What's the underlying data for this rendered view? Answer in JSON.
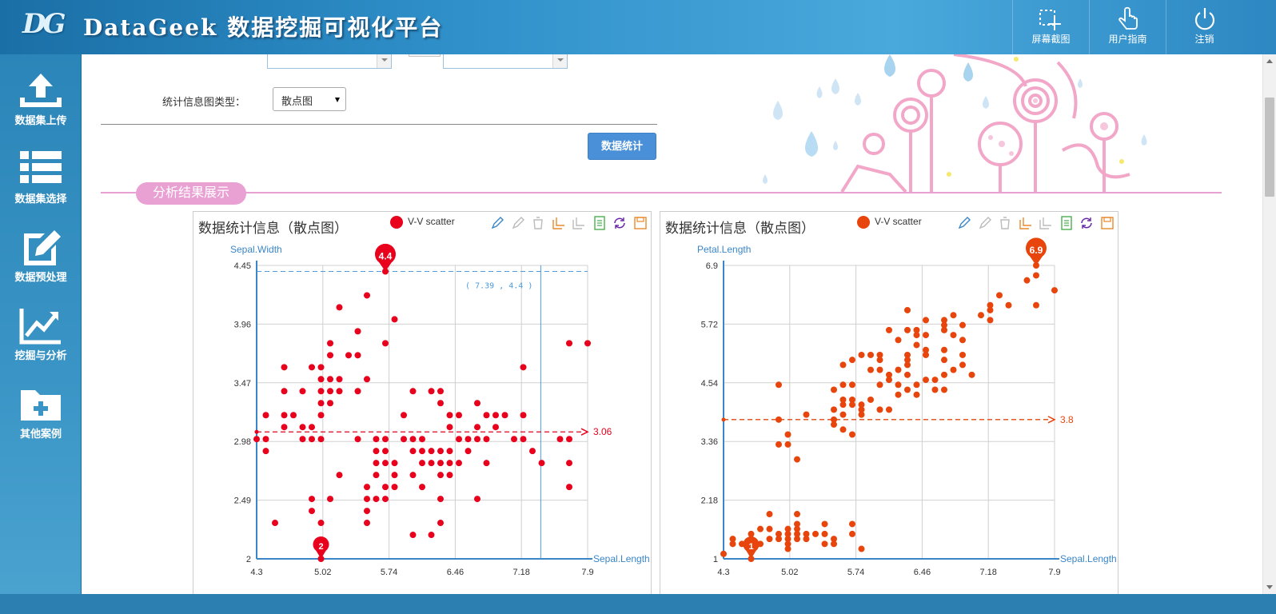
{
  "header": {
    "logo": "DG",
    "title": "DataGeek 数据挖掘可视化平台",
    "buttons": [
      {
        "label": "屏幕截图",
        "icon": "screenshot-icon"
      },
      {
        "label": "用户指南",
        "icon": "hand-pointer-icon"
      },
      {
        "label": "注销",
        "icon": "power-icon"
      }
    ]
  },
  "sidebar": {
    "items": [
      {
        "label": "数据集上传",
        "icon": "upload-icon"
      },
      {
        "label": "数据集选择",
        "icon": "list-icon"
      },
      {
        "label": "数据预处理",
        "icon": "edit-icon"
      },
      {
        "label": "挖掘与分析",
        "icon": "line-chart-icon"
      },
      {
        "label": "其他案例",
        "icon": "folder-plus-icon"
      }
    ]
  },
  "form": {
    "chart_type_label": "统计信息图类型：",
    "chart_type_value": "散点图",
    "submit_label": "数据统计"
  },
  "section": {
    "title": "分析结果展示"
  },
  "colors": {
    "series_left": "#e8001c",
    "series_right": "#e8450d",
    "axis": "#3a86c8",
    "accent_pink": "#e9a0d3",
    "button_blue": "#4a90d9"
  },
  "charts": [
    {
      "title": "数据统计信息（散点图）",
      "legend": "V-V scatter",
      "toolbox": [
        "mark-icon",
        "mark-undo-icon",
        "mark-clear-icon",
        "zoom-icon",
        "zoom-reset-icon",
        "data-view-icon",
        "restore-icon",
        "save-image-icon"
      ]
    },
    {
      "title": "数据统计信息（散点图）",
      "legend": "V-V scatter",
      "toolbox": [
        "mark-icon",
        "mark-undo-icon",
        "mark-clear-icon",
        "zoom-icon",
        "zoom-reset-icon",
        "data-view-icon",
        "restore-icon",
        "save-image-icon"
      ]
    }
  ],
  "chart_data": [
    {
      "type": "scatter",
      "title": "数据统计信息（散点图）",
      "legend": "V-V scatter",
      "xlabel": "Sepal.Length",
      "ylabel": "Sepal.Width",
      "xlim": [
        4.3,
        7.9
      ],
      "ylim": [
        2,
        4.45
      ],
      "xticks": [
        "4.3",
        "5.02",
        "5.74",
        "6.46",
        "7.18",
        "7.9"
      ],
      "yticks": [
        "2",
        "2.49",
        "2.98",
        "3.47",
        "3.96",
        "4.45"
      ],
      "max_marker": {
        "label": "4.4",
        "x": 5.7,
        "y": 4.4
      },
      "min_marker": {
        "label": "2",
        "x": 5.0,
        "y": 2.0
      },
      "mean_line": {
        "label": "3.06",
        "value": 3.06
      },
      "crosshair": {
        "label": "( 7.39 , 4.4 )",
        "x": 7.39,
        "y": 4.4
      },
      "points": [
        [
          4.3,
          3.0
        ],
        [
          4.4,
          2.9
        ],
        [
          4.4,
          3.0
        ],
        [
          4.4,
          3.2
        ],
        [
          4.5,
          2.3
        ],
        [
          4.6,
          3.1
        ],
        [
          4.6,
          3.2
        ],
        [
          4.6,
          3.4
        ],
        [
          4.6,
          3.6
        ],
        [
          4.7,
          3.2
        ],
        [
          4.8,
          3.0
        ],
        [
          4.8,
          3.1
        ],
        [
          4.8,
          3.4
        ],
        [
          4.9,
          2.4
        ],
        [
          4.9,
          2.5
        ],
        [
          4.9,
          3.0
        ],
        [
          4.9,
          3.1
        ],
        [
          4.9,
          3.6
        ],
        [
          5.0,
          2.0
        ],
        [
          5.0,
          2.3
        ],
        [
          5.0,
          3.0
        ],
        [
          5.0,
          3.2
        ],
        [
          5.0,
          3.3
        ],
        [
          5.0,
          3.4
        ],
        [
          5.0,
          3.5
        ],
        [
          5.0,
          3.6
        ],
        [
          5.1,
          2.5
        ],
        [
          5.1,
          3.3
        ],
        [
          5.1,
          3.4
        ],
        [
          5.1,
          3.5
        ],
        [
          5.1,
          3.7
        ],
        [
          5.1,
          3.8
        ],
        [
          5.2,
          2.7
        ],
        [
          5.2,
          3.4
        ],
        [
          5.2,
          3.5
        ],
        [
          5.2,
          4.1
        ],
        [
          5.3,
          3.7
        ],
        [
          5.4,
          3.0
        ],
        [
          5.4,
          3.4
        ],
        [
          5.4,
          3.7
        ],
        [
          5.4,
          3.9
        ],
        [
          5.5,
          2.3
        ],
        [
          5.5,
          2.4
        ],
        [
          5.5,
          2.5
        ],
        [
          5.5,
          2.6
        ],
        [
          5.5,
          3.5
        ],
        [
          5.5,
          4.2
        ],
        [
          5.6,
          2.5
        ],
        [
          5.6,
          2.7
        ],
        [
          5.6,
          2.8
        ],
        [
          5.6,
          2.9
        ],
        [
          5.6,
          3.0
        ],
        [
          5.7,
          2.5
        ],
        [
          5.7,
          2.6
        ],
        [
          5.7,
          2.8
        ],
        [
          5.7,
          2.9
        ],
        [
          5.7,
          3.0
        ],
        [
          5.7,
          3.8
        ],
        [
          5.7,
          4.4
        ],
        [
          5.8,
          2.6
        ],
        [
          5.8,
          2.7
        ],
        [
          5.8,
          2.8
        ],
        [
          5.8,
          4.0
        ],
        [
          5.9,
          3.0
        ],
        [
          5.9,
          3.2
        ],
        [
          6.0,
          2.2
        ],
        [
          6.0,
          2.7
        ],
        [
          6.0,
          2.9
        ],
        [
          6.0,
          3.0
        ],
        [
          6.0,
          3.4
        ],
        [
          6.1,
          2.6
        ],
        [
          6.1,
          2.8
        ],
        [
          6.1,
          2.9
        ],
        [
          6.1,
          3.0
        ],
        [
          6.2,
          2.2
        ],
        [
          6.2,
          2.8
        ],
        [
          6.2,
          2.9
        ],
        [
          6.2,
          3.4
        ],
        [
          6.3,
          2.3
        ],
        [
          6.3,
          2.5
        ],
        [
          6.3,
          2.7
        ],
        [
          6.3,
          2.8
        ],
        [
          6.3,
          2.9
        ],
        [
          6.3,
          3.3
        ],
        [
          6.3,
          3.4
        ],
        [
          6.4,
          2.7
        ],
        [
          6.4,
          2.8
        ],
        [
          6.4,
          2.9
        ],
        [
          6.4,
          3.1
        ],
        [
          6.4,
          3.2
        ],
        [
          6.5,
          2.8
        ],
        [
          6.5,
          3.0
        ],
        [
          6.5,
          3.2
        ],
        [
          6.6,
          2.9
        ],
        [
          6.6,
          3.0
        ],
        [
          6.7,
          2.5
        ],
        [
          6.7,
          3.0
        ],
        [
          6.7,
          3.1
        ],
        [
          6.7,
          3.3
        ],
        [
          6.8,
          2.8
        ],
        [
          6.8,
          3.0
        ],
        [
          6.8,
          3.2
        ],
        [
          6.9,
          3.1
        ],
        [
          6.9,
          3.2
        ],
        [
          7.0,
          3.2
        ],
        [
          7.1,
          3.0
        ],
        [
          7.2,
          3.0
        ],
        [
          7.2,
          3.2
        ],
        [
          7.2,
          3.6
        ],
        [
          7.3,
          2.9
        ],
        [
          7.4,
          2.8
        ],
        [
          7.6,
          3.0
        ],
        [
          7.7,
          2.6
        ],
        [
          7.7,
          2.8
        ],
        [
          7.7,
          3.0
        ],
        [
          7.7,
          3.8
        ],
        [
          7.9,
          3.8
        ]
      ]
    },
    {
      "type": "scatter",
      "title": "数据统计信息（散点图）",
      "legend": "V-V scatter",
      "xlabel": "Sepal.Length",
      "ylabel": "Petal.Length",
      "xlim": [
        4.3,
        7.9
      ],
      "ylim": [
        1,
        6.9
      ],
      "xticks": [
        "4.3",
        "5.02",
        "5.74",
        "6.46",
        "7.18",
        "7.9"
      ],
      "yticks": [
        "1",
        "2.18",
        "3.36",
        "4.54",
        "5.72",
        "6.9"
      ],
      "max_marker": {
        "label": "6.9",
        "x": 7.7,
        "y": 6.9
      },
      "min_marker": {
        "label": "1",
        "x": 4.6,
        "y": 1.0
      },
      "mean_line": {
        "label": "3.8",
        "value": 3.8
      },
      "points": [
        [
          4.3,
          1.1
        ],
        [
          4.4,
          1.3
        ],
        [
          4.4,
          1.4
        ],
        [
          4.5,
          1.3
        ],
        [
          4.6,
          1.0
        ],
        [
          4.6,
          1.4
        ],
        [
          4.6,
          1.5
        ],
        [
          4.7,
          1.3
        ],
        [
          4.7,
          1.6
        ],
        [
          4.8,
          1.4
        ],
        [
          4.8,
          1.6
        ],
        [
          4.8,
          1.9
        ],
        [
          4.9,
          1.4
        ],
        [
          4.9,
          1.5
        ],
        [
          4.9,
          3.3
        ],
        [
          4.9,
          3.8
        ],
        [
          4.9,
          4.5
        ],
        [
          5.0,
          1.2
        ],
        [
          5.0,
          1.3
        ],
        [
          5.0,
          1.4
        ],
        [
          5.0,
          1.5
        ],
        [
          5.0,
          1.6
        ],
        [
          5.0,
          3.3
        ],
        [
          5.0,
          3.5
        ],
        [
          5.1,
          1.4
        ],
        [
          5.1,
          1.5
        ],
        [
          5.1,
          1.6
        ],
        [
          5.1,
          1.7
        ],
        [
          5.1,
          1.9
        ],
        [
          5.1,
          3.0
        ],
        [
          5.2,
          1.4
        ],
        [
          5.2,
          1.5
        ],
        [
          5.2,
          3.9
        ],
        [
          5.3,
          1.5
        ],
        [
          5.4,
          1.3
        ],
        [
          5.4,
          1.5
        ],
        [
          5.4,
          1.7
        ],
        [
          5.5,
          1.3
        ],
        [
          5.5,
          1.4
        ],
        [
          5.5,
          3.7
        ],
        [
          5.5,
          3.8
        ],
        [
          5.5,
          4.0
        ],
        [
          5.5,
          4.4
        ],
        [
          5.6,
          3.6
        ],
        [
          5.6,
          3.9
        ],
        [
          5.6,
          4.1
        ],
        [
          5.6,
          4.2
        ],
        [
          5.6,
          4.5
        ],
        [
          5.6,
          4.9
        ],
        [
          5.7,
          1.5
        ],
        [
          5.7,
          1.7
        ],
        [
          5.7,
          3.5
        ],
        [
          5.7,
          4.1
        ],
        [
          5.7,
          4.2
        ],
        [
          5.7,
          4.5
        ],
        [
          5.7,
          5.0
        ],
        [
          5.8,
          1.2
        ],
        [
          5.8,
          3.9
        ],
        [
          5.8,
          4.0
        ],
        [
          5.8,
          4.1
        ],
        [
          5.8,
          5.1
        ],
        [
          5.9,
          4.2
        ],
        [
          5.9,
          4.8
        ],
        [
          5.9,
          5.1
        ],
        [
          6.0,
          4.0
        ],
        [
          6.0,
          4.5
        ],
        [
          6.0,
          4.8
        ],
        [
          6.0,
          5.0
        ],
        [
          6.0,
          5.1
        ],
        [
          6.1,
          4.0
        ],
        [
          6.1,
          4.6
        ],
        [
          6.1,
          4.7
        ],
        [
          6.1,
          5.6
        ],
        [
          6.2,
          4.3
        ],
        [
          6.2,
          4.5
        ],
        [
          6.2,
          4.8
        ],
        [
          6.2,
          5.4
        ],
        [
          6.3,
          4.4
        ],
        [
          6.3,
          4.7
        ],
        [
          6.3,
          4.9
        ],
        [
          6.3,
          5.0
        ],
        [
          6.3,
          5.1
        ],
        [
          6.3,
          5.6
        ],
        [
          6.3,
          6.0
        ],
        [
          6.4,
          4.3
        ],
        [
          6.4,
          4.5
        ],
        [
          6.4,
          5.3
        ],
        [
          6.4,
          5.5
        ],
        [
          6.4,
          5.6
        ],
        [
          6.5,
          4.6
        ],
        [
          6.5,
          5.1
        ],
        [
          6.5,
          5.2
        ],
        [
          6.5,
          5.5
        ],
        [
          6.5,
          5.8
        ],
        [
          6.6,
          4.4
        ],
        [
          6.6,
          4.6
        ],
        [
          6.7,
          4.4
        ],
        [
          6.7,
          4.7
        ],
        [
          6.7,
          5.0
        ],
        [
          6.7,
          5.2
        ],
        [
          6.7,
          5.6
        ],
        [
          6.7,
          5.7
        ],
        [
          6.7,
          5.8
        ],
        [
          6.8,
          4.8
        ],
        [
          6.8,
          5.5
        ],
        [
          6.8,
          5.9
        ],
        [
          6.9,
          4.9
        ],
        [
          6.9,
          5.1
        ],
        [
          6.9,
          5.4
        ],
        [
          6.9,
          5.7
        ],
        [
          7.0,
          4.7
        ],
        [
          7.1,
          5.9
        ],
        [
          7.2,
          5.8
        ],
        [
          7.2,
          6.0
        ],
        [
          7.2,
          6.1
        ],
        [
          7.3,
          6.3
        ],
        [
          7.4,
          6.1
        ],
        [
          7.6,
          6.6
        ],
        [
          7.7,
          6.1
        ],
        [
          7.7,
          6.7
        ],
        [
          7.7,
          6.9
        ],
        [
          7.9,
          6.4
        ]
      ]
    }
  ]
}
